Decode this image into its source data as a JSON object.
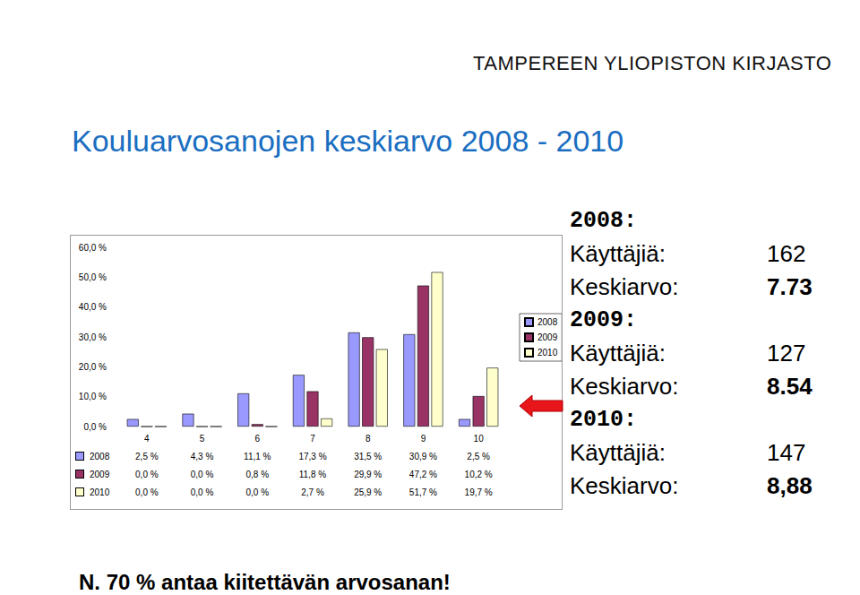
{
  "header": "TAMPEREEN YLIOPISTON KIRJASTO",
  "chart_data": {
    "type": "bar",
    "title": "Kouluarvosanojen keskiarvo 2008 - 2010",
    "categories": [
      "4",
      "5",
      "6",
      "7",
      "8",
      "9",
      "10"
    ],
    "series": [
      {
        "name": "2008",
        "color": "#9999ff",
        "values": [
          2.5,
          4.3,
          11.1,
          17.3,
          31.5,
          30.9,
          2.5
        ],
        "value_labels": [
          "2,5 %",
          "4,3 %",
          "11,1 %",
          "17,3 %",
          "31,5 %",
          "30,9 %",
          "2,5 %"
        ]
      },
      {
        "name": "2009",
        "color": "#993366",
        "values": [
          0.0,
          0.0,
          0.8,
          11.8,
          29.9,
          47.2,
          10.2
        ],
        "value_labels": [
          "0,0 %",
          "0,0 %",
          "0,8 %",
          "11,8 %",
          "29,9 %",
          "47,2 %",
          "10,2 %"
        ]
      },
      {
        "name": "2010",
        "color": "#ffffcc",
        "values": [
          0.0,
          0.0,
          0.0,
          2.7,
          25.9,
          51.7,
          19.7
        ],
        "value_labels": [
          "0,0 %",
          "0,0 %",
          "0,0 %",
          "2,7 %",
          "25,9 %",
          "51,7 %",
          "19,7 %"
        ]
      }
    ],
    "ylim": [
      0,
      60
    ],
    "yticks": [
      {
        "value": 0,
        "label": "0,0 %"
      },
      {
        "value": 10,
        "label": "10,0 %"
      },
      {
        "value": 20,
        "label": "20,0 %"
      },
      {
        "value": 30,
        "label": "30,0 %"
      },
      {
        "value": 40,
        "label": "40,0 %"
      },
      {
        "value": 50,
        "label": "50,0 %"
      },
      {
        "value": 60,
        "label": "60,0 %"
      }
    ],
    "grid": false,
    "legend": "right"
  },
  "stats": [
    {
      "year": "2008:",
      "users_label": "Käyttäjiä:",
      "users": "162",
      "mean_label": "Keskiarvo:",
      "mean": "7.73"
    },
    {
      "year": "2009:",
      "users_label": "Käyttäjiä:",
      "users": "127",
      "mean_label": "Keskiarvo:",
      "mean": "8.54"
    },
    {
      "year": "2010:",
      "users_label": "Käyttäjiä:",
      "users": "147",
      "mean_label": "Keskiarvo:",
      "mean": "8,88"
    }
  ],
  "footnote": "N. 70 % antaa kiitettävän arvosanan!"
}
